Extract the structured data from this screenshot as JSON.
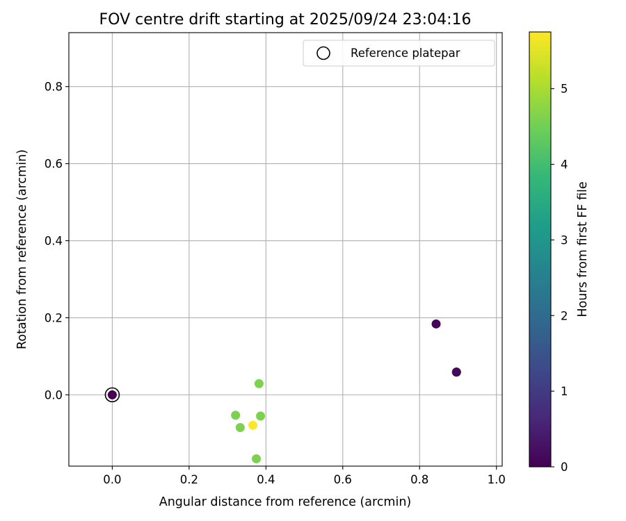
{
  "chart_data": {
    "type": "scatter",
    "title": "FOV centre drift starting at 2025/09/24 23:04:16",
    "xlabel": "Angular distance from reference (arcmin)",
    "ylabel": "Rotation from reference (arcmin)",
    "xlim": [
      -0.113,
      1.015
    ],
    "ylim": [
      -0.185,
      0.94
    ],
    "xticks": [
      0.0,
      0.2,
      0.4,
      0.6,
      0.8,
      1.0
    ],
    "xtick_labels": [
      "0.0",
      "0.2",
      "0.4",
      "0.6",
      "0.8",
      "1.0"
    ],
    "yticks": [
      0.0,
      0.2,
      0.4,
      0.6,
      0.8
    ],
    "ytick_labels": [
      "0.0",
      "0.2",
      "0.4",
      "0.6",
      "0.8"
    ],
    "grid": true,
    "legend": {
      "position": "upper-right",
      "entries": [
        {
          "label": "Reference platepar",
          "marker": "open-circle"
        }
      ]
    },
    "reference_point": {
      "x": 0.0,
      "y": 0.0
    },
    "points": [
      {
        "x": 0.0,
        "y": 0.0,
        "hours": 0.0
      },
      {
        "x": 0.843,
        "y": 0.184,
        "hours": 0.05
      },
      {
        "x": 0.896,
        "y": 0.059,
        "hours": 0.15
      },
      {
        "x": 0.896,
        "y": 0.059,
        "hours": 0.1
      },
      {
        "x": 0.382,
        "y": 0.029,
        "hours": 4.6
      },
      {
        "x": 0.321,
        "y": -0.053,
        "hours": 4.6
      },
      {
        "x": 0.386,
        "y": -0.055,
        "hours": 4.6
      },
      {
        "x": 0.333,
        "y": -0.085,
        "hours": 4.6
      },
      {
        "x": 0.366,
        "y": -0.079,
        "hours": 5.75
      },
      {
        "x": 0.375,
        "y": -0.166,
        "hours": 4.6
      }
    ],
    "colorbar": {
      "label": "Hours from first FF file",
      "min": 0,
      "max": 5.75,
      "ticks": [
        0,
        1,
        2,
        3,
        4,
        5
      ],
      "tick_labels": [
        "0",
        "1",
        "2",
        "3",
        "4",
        "5"
      ],
      "colormap": [
        "#440154",
        "#482878",
        "#3e4989",
        "#31688e",
        "#26828e",
        "#1f9e89",
        "#35b779",
        "#6ece58",
        "#b5de2b",
        "#fde725"
      ]
    }
  }
}
